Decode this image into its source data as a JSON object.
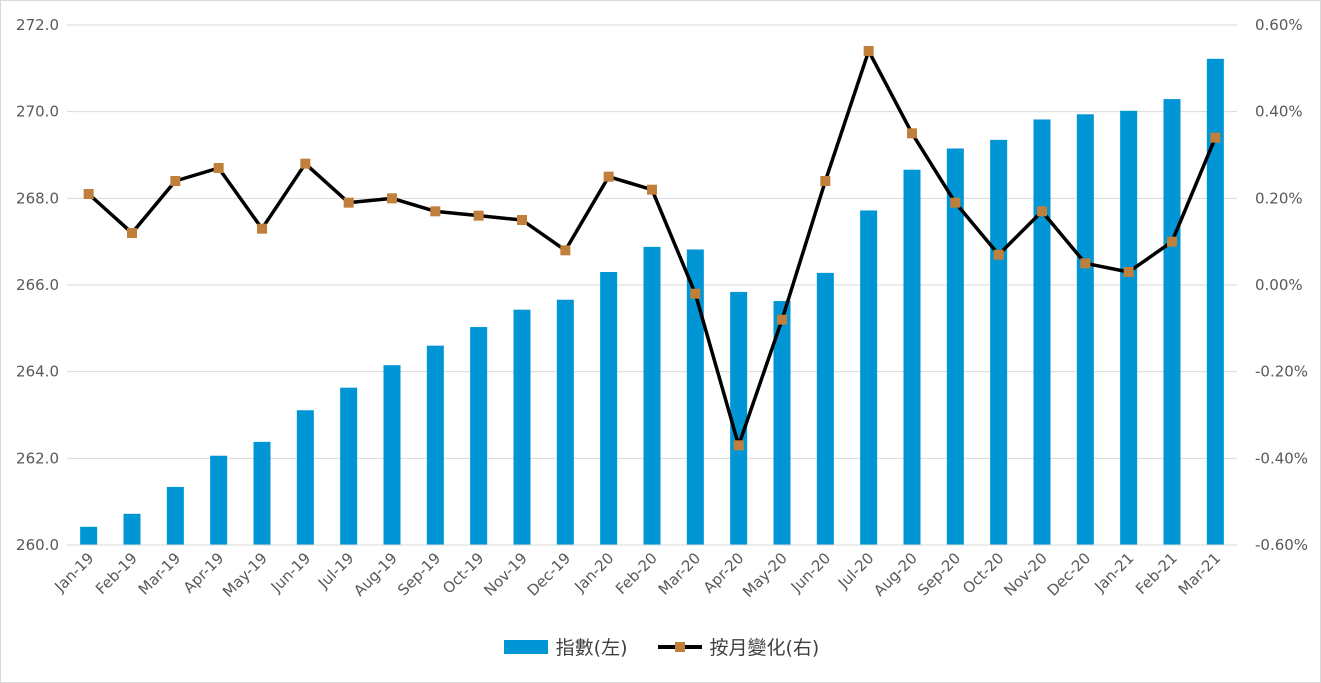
{
  "colors": {
    "bar": "#0096d6",
    "line": "#000000",
    "marker": "#c0803b",
    "grid": "#d9d9d9",
    "text": "#595959"
  },
  "legend": {
    "bar_label": "指數(左)",
    "line_label": "按月變化(右)",
    "placement": "bottom-center"
  },
  "chart_data": {
    "type": "bar",
    "title": "",
    "categories": [
      "Jan-19",
      "Feb-19",
      "Mar-19",
      "Apr-19",
      "May-19",
      "Jun-19",
      "Jul-19",
      "Aug-19",
      "Sep-19",
      "Oct-19",
      "Nov-19",
      "Dec-19",
      "Jan-20",
      "Feb-20",
      "Mar-20",
      "Apr-20",
      "May-20",
      "Jun-20",
      "Jul-20",
      "Aug-20",
      "Sep-20",
      "Oct-20",
      "Nov-20",
      "Dec-20",
      "Jan-21",
      "Feb-21",
      "Mar-21"
    ],
    "series": [
      {
        "name": "指數(左)",
        "type": "bar",
        "axis": "left",
        "values": [
          260.42,
          260.72,
          261.34,
          262.06,
          262.38,
          263.11,
          263.63,
          264.15,
          264.6,
          265.03,
          265.43,
          265.66,
          266.3,
          266.88,
          266.82,
          265.84,
          265.63,
          266.28,
          267.72,
          268.66,
          269.15,
          269.35,
          269.82,
          269.94,
          270.02,
          270.29,
          271.22
        ]
      },
      {
        "name": "按月變化(右)",
        "type": "line",
        "axis": "right",
        "values": [
          0.21,
          0.12,
          0.24,
          0.27,
          0.13,
          0.28,
          0.19,
          0.2,
          0.17,
          0.16,
          0.15,
          0.08,
          0.25,
          0.22,
          -0.02,
          -0.37,
          -0.08,
          0.24,
          0.54,
          0.35,
          0.19,
          0.07,
          0.17,
          0.05,
          0.03,
          0.1,
          0.34
        ]
      }
    ],
    "y_left": {
      "ylim": [
        260,
        272
      ],
      "ticks": [
        "260.0",
        "262.0",
        "264.0",
        "266.0",
        "268.0",
        "270.0",
        "272.0"
      ]
    },
    "y_right": {
      "ylim": [
        -0.6,
        0.6
      ],
      "ticks": [
        "-0.60%",
        "-0.40%",
        "-0.20%",
        "0.00%",
        "0.20%",
        "0.40%",
        "0.60%"
      ]
    },
    "grid": true
  }
}
